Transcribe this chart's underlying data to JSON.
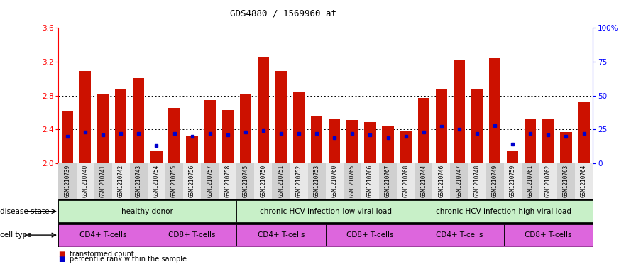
{
  "title": "GDS4880 / 1569960_at",
  "samples": [
    "GSM1210739",
    "GSM1210740",
    "GSM1210741",
    "GSM1210742",
    "GSM1210743",
    "GSM1210754",
    "GSM1210755",
    "GSM1210756",
    "GSM1210757",
    "GSM1210758",
    "GSM1210745",
    "GSM1210750",
    "GSM1210751",
    "GSM1210752",
    "GSM1210753",
    "GSM1210760",
    "GSM1210765",
    "GSM1210766",
    "GSM1210767",
    "GSM1210768",
    "GSM1210744",
    "GSM1210746",
    "GSM1210747",
    "GSM1210748",
    "GSM1210749",
    "GSM1210759",
    "GSM1210761",
    "GSM1210762",
    "GSM1210763",
    "GSM1210764"
  ],
  "transformed_count": [
    2.62,
    3.09,
    2.81,
    2.87,
    3.01,
    2.14,
    2.65,
    2.32,
    2.75,
    2.63,
    2.82,
    3.26,
    3.09,
    2.84,
    2.56,
    2.52,
    2.51,
    2.49,
    2.44,
    2.38,
    2.77,
    2.87,
    3.22,
    2.87,
    3.24,
    2.14,
    2.53,
    2.52,
    2.37,
    2.72
  ],
  "percentile_rank": [
    20,
    23,
    21,
    22,
    22,
    13,
    22,
    20,
    22,
    21,
    23,
    24,
    22,
    22,
    22,
    19,
    22,
    21,
    19,
    20,
    23,
    27,
    25,
    22,
    28,
    14,
    22,
    21,
    20,
    22
  ],
  "ylim_left": [
    2.0,
    3.6
  ],
  "ylim_right": [
    0,
    100
  ],
  "yticks_left": [
    2.0,
    2.4,
    2.8,
    3.2,
    3.6
  ],
  "ytick_labels_right": [
    "0",
    "25",
    "50",
    "75",
    "100%"
  ],
  "bar_color": "#cc1100",
  "dot_color": "#0000cc",
  "disease_green_light": "#c8f0c8",
  "disease_green_dark": "#88dd88",
  "cell_purple": "#dd66dd",
  "legend_bar_label": "transformed count",
  "legend_dot_label": "percentile rank within the sample",
  "disease_state_label": "disease state",
  "cell_type_label": "cell type",
  "disease_groups": [
    {
      "label": "healthy donor",
      "start": 0,
      "end": 10
    },
    {
      "label": "chronic HCV infection-low viral load",
      "start": 10,
      "end": 20
    },
    {
      "label": "chronic HCV infection-high viral load",
      "start": 20,
      "end": 30
    }
  ],
  "cell_groups": [
    {
      "label": "CD4+ T-cells",
      "start": 0,
      "end": 5
    },
    {
      "label": "CD8+ T-cells",
      "start": 5,
      "end": 10
    },
    {
      "label": "CD4+ T-cells",
      "start": 10,
      "end": 15
    },
    {
      "label": "CD8+ T-cells",
      "start": 15,
      "end": 20
    },
    {
      "label": "CD4+ T-cells",
      "start": 20,
      "end": 25
    },
    {
      "label": "CD8+ T-cells",
      "start": 25,
      "end": 30
    }
  ],
  "xtick_bg_light": "#e8e8e8",
  "xtick_bg_dark": "#d0d0d0"
}
